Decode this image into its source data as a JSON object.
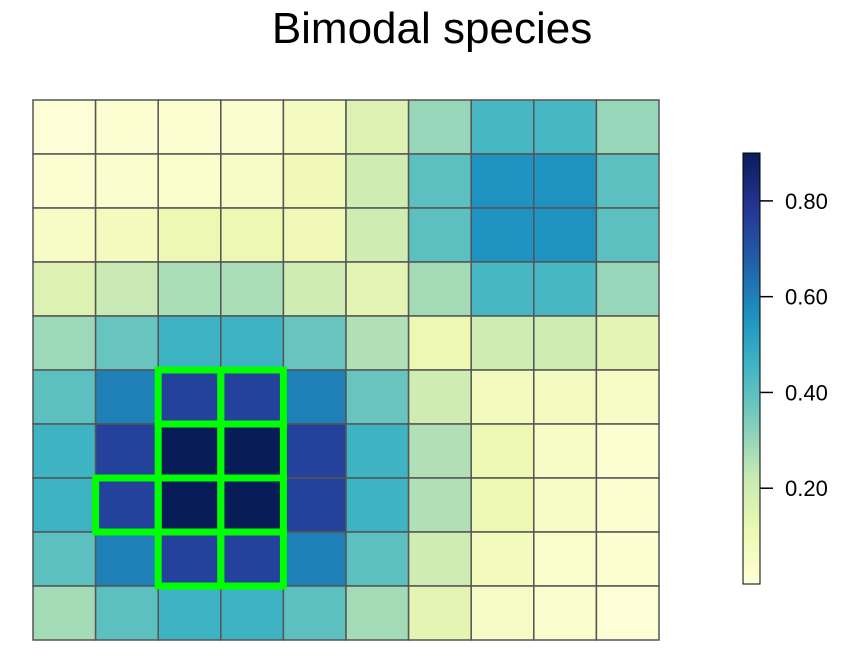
{
  "chart_data": {
    "type": "heatmap",
    "title": "Bimodal species",
    "xlabel": "",
    "ylabel": "",
    "rows": 10,
    "cols": 10,
    "values": [
      [
        0.01,
        0.02,
        0.02,
        0.03,
        0.07,
        0.16,
        0.3,
        0.44,
        0.44,
        0.3
      ],
      [
        0.02,
        0.03,
        0.04,
        0.05,
        0.09,
        0.2,
        0.4,
        0.56,
        0.56,
        0.4
      ],
      [
        0.05,
        0.08,
        0.11,
        0.11,
        0.09,
        0.2,
        0.4,
        0.56,
        0.56,
        0.4
      ],
      [
        0.16,
        0.22,
        0.27,
        0.27,
        0.2,
        0.14,
        0.28,
        0.44,
        0.44,
        0.3
      ],
      [
        0.29,
        0.38,
        0.46,
        0.46,
        0.38,
        0.26,
        0.11,
        0.2,
        0.2,
        0.14
      ],
      [
        0.4,
        0.6,
        0.75,
        0.75,
        0.6,
        0.38,
        0.2,
        0.08,
        0.07,
        0.05
      ],
      [
        0.46,
        0.75,
        0.9,
        0.9,
        0.75,
        0.46,
        0.26,
        0.11,
        0.05,
        0.02
      ],
      [
        0.46,
        0.75,
        0.9,
        0.9,
        0.75,
        0.46,
        0.26,
        0.11,
        0.05,
        0.02
      ],
      [
        0.4,
        0.6,
        0.75,
        0.75,
        0.6,
        0.4,
        0.2,
        0.08,
        0.04,
        0.02
      ],
      [
        0.28,
        0.4,
        0.46,
        0.46,
        0.4,
        0.28,
        0.14,
        0.06,
        0.03,
        0.01
      ]
    ],
    "highlighted_cells": [
      [
        5,
        2
      ],
      [
        5,
        3
      ],
      [
        6,
        2
      ],
      [
        6,
        3
      ],
      [
        7,
        1
      ],
      [
        7,
        2
      ],
      [
        7,
        3
      ],
      [
        8,
        2
      ],
      [
        8,
        3
      ]
    ],
    "highlight_color": "#00ff00",
    "colorscale": [
      "#ffffd9",
      "#edf8b1",
      "#c7e9b4",
      "#7fcdbb",
      "#41b6c4",
      "#1d91c0",
      "#225ea8",
      "#253494",
      "#081d58"
    ],
    "zlim": [
      0,
      0.9
    ],
    "legend": {
      "position": "right",
      "tick_values": [
        0.2,
        0.4,
        0.6,
        0.8
      ],
      "tick_labels": [
        "0.20",
        "0.40",
        "0.60",
        "0.80"
      ]
    },
    "grid": true
  }
}
